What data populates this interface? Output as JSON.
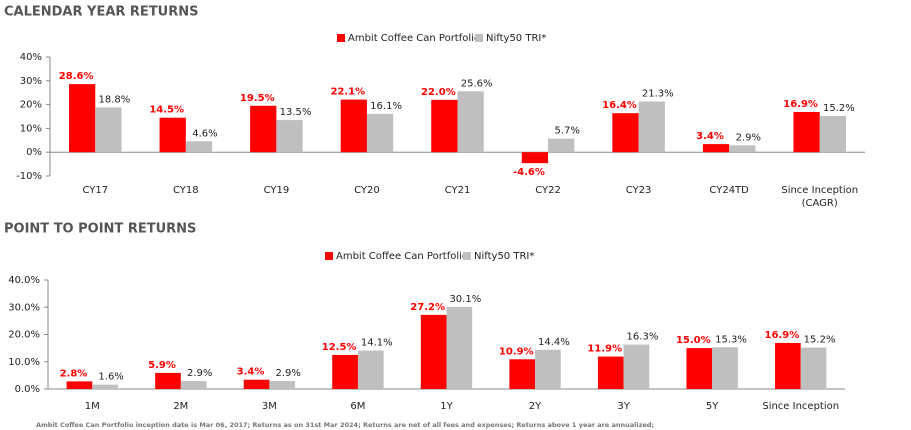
{
  "chart_data": [
    {
      "type": "bar",
      "title": "CALENDAR YEAR RETURNS",
      "categories": [
        "CY17",
        "CY18",
        "CY19",
        "CY20",
        "CY21",
        "CY22",
        "CY23",
        "CY24TD",
        "Since Inception (CAGR)"
      ],
      "series": [
        {
          "name": "Ambit Coffee Can Portfolio",
          "color": "#ff0000",
          "values": [
            28.6,
            14.5,
            19.5,
            22.1,
            22.0,
            -4.6,
            16.4,
            3.4,
            16.9
          ],
          "value_labels": [
            "28.6%",
            "14.5%",
            "19.5%",
            "22.1%",
            "22.0%",
            "-4.6%",
            "16.4%",
            "3.4%",
            "16.9%"
          ]
        },
        {
          "name": "Nifty50 TRI*",
          "color": "#bfbfbf",
          "values": [
            18.8,
            4.6,
            13.5,
            16.1,
            25.6,
            5.7,
            21.3,
            2.9,
            15.2
          ],
          "value_labels": [
            "18.8%",
            "4.6%",
            "13.5%",
            "16.1%",
            "25.6%",
            "5.7%",
            "21.3%",
            "2.9%",
            "15.2%"
          ]
        }
      ],
      "ylim": [
        -10,
        40
      ],
      "yticks": [
        {
          "value": -10,
          "label": "-10%"
        },
        {
          "value": 0,
          "label": "0%"
        },
        {
          "value": 10,
          "label": "10%"
        },
        {
          "value": 20,
          "label": "20%"
        },
        {
          "value": 30,
          "label": "30%"
        },
        {
          "value": 40,
          "label": "40%"
        }
      ],
      "legend": "top"
    },
    {
      "type": "bar",
      "title": "POINT TO POINT RETURNS",
      "categories": [
        "1M",
        "2M",
        "3M",
        "6M",
        "1Y",
        "2Y",
        "3Y",
        "5Y",
        "Since Inception"
      ],
      "series": [
        {
          "name": "Ambit Coffee Can Portfolio",
          "color": "#ff0000",
          "values": [
            2.8,
            5.9,
            3.4,
            12.5,
            27.2,
            10.9,
            11.9,
            15.0,
            16.9
          ],
          "value_labels": [
            "2.8%",
            "5.9%",
            "3.4%",
            "12.5%",
            "27.2%",
            "10.9%",
            "11.9%",
            "15.0%",
            "16.9%"
          ]
        },
        {
          "name": "Nifty50 TRI*",
          "color": "#bfbfbf",
          "values": [
            1.6,
            2.9,
            2.9,
            14.1,
            30.1,
            14.4,
            16.3,
            15.3,
            15.2
          ],
          "value_labels": [
            "1.6%",
            "2.9%",
            "2.9%",
            "14.1%",
            "30.1%",
            "14.4%",
            "16.3%",
            "15.3%",
            "15.2%"
          ]
        }
      ],
      "ylim": [
        0,
        40
      ],
      "yticks": [
        {
          "value": 0,
          "label": "0.0%"
        },
        {
          "value": 10,
          "label": "10.0%"
        },
        {
          "value": 20,
          "label": "20.0%"
        },
        {
          "value": 30,
          "label": "30.0%"
        },
        {
          "value": 40,
          "label": "40.0%"
        }
      ],
      "legend": "top"
    }
  ],
  "footnote": "Ambit Coffee Can Portfolio inception date is Mar 06, 2017; Returns as on 31st Mar 2024; Returns are net of all fees and expenses; Returns above 1 year are annualized;"
}
